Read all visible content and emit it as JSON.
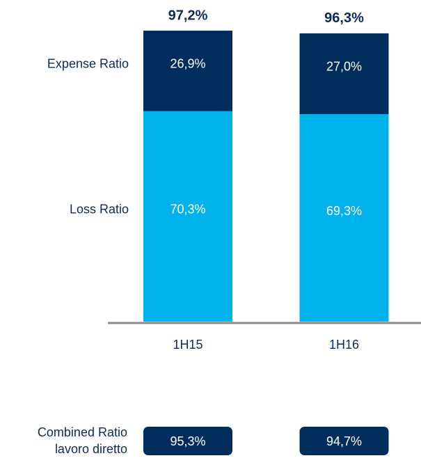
{
  "chart_data": {
    "type": "stacked_bar",
    "categories": [
      "1H15",
      "1H16"
    ],
    "series": [
      {
        "name": "Loss Ratio",
        "color": "#00b2ec",
        "values": [
          70.3,
          69.3
        ],
        "value_labels": [
          "70,3%",
          "69,3%"
        ]
      },
      {
        "name": "Expense Ratio",
        "color": "#002d5c",
        "values": [
          26.9,
          27.0
        ],
        "value_labels": [
          "26,9%",
          "27,0%"
        ]
      }
    ],
    "totals": [
      97.2,
      96.3
    ],
    "total_labels": [
      "97,2%",
      "96,3%"
    ],
    "combined_ratio": {
      "label_lines": [
        "Combined Ratio",
        "lavoro diretto"
      ],
      "color": "#002d5c",
      "values": [
        95.3,
        94.7
      ],
      "value_labels": [
        "95,3%",
        "94,7%"
      ]
    }
  }
}
